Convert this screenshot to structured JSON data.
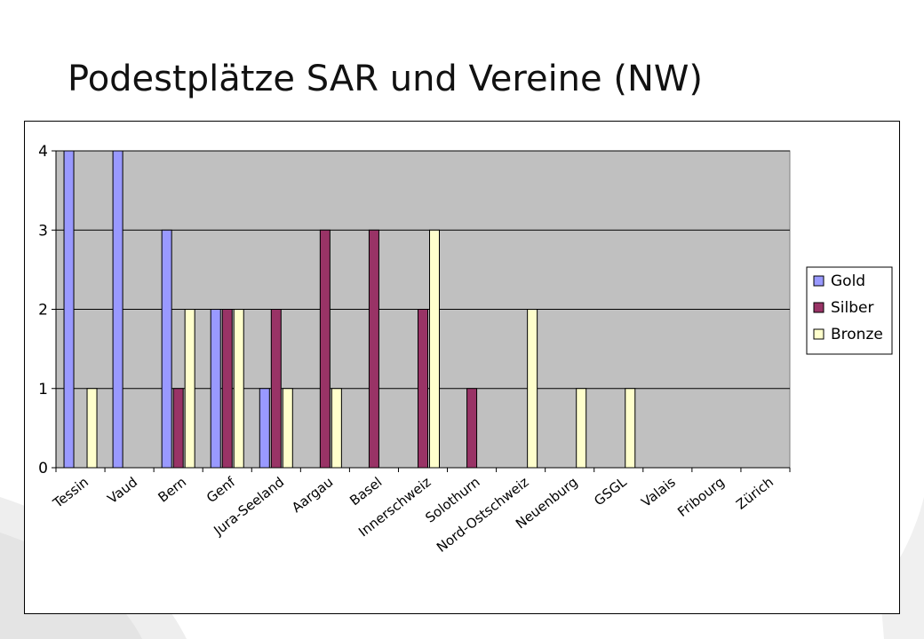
{
  "page": {
    "title": "Podestplätze SAR und Vereine (NW)"
  },
  "colors": {
    "plot_background": "#c0c0c0",
    "gold": "#9999ff",
    "silber": "#993366",
    "bronze": "#ffffcc",
    "frame": "#000000"
  },
  "chart_data": {
    "type": "bar",
    "title": "",
    "xlabel": "",
    "ylabel": "",
    "categories": [
      "Tessin",
      "Vaud",
      "Bern",
      "Genf",
      "Jura-Seeland",
      "Aargau",
      "Basel",
      "Innerschweiz",
      "Solothurn",
      "Nord-Ostschweiz",
      "Neuenburg",
      "GSGL",
      "Valais",
      "Fribourg",
      "Zürich"
    ],
    "series": [
      {
        "name": "Gold",
        "color": "#9999ff",
        "values": [
          4,
          4,
          3,
          2,
          1,
          0,
          0,
          0,
          0,
          0,
          0,
          0,
          0,
          0,
          0
        ]
      },
      {
        "name": "Silber",
        "color": "#993366",
        "values": [
          0,
          0,
          1,
          2,
          2,
          3,
          3,
          2,
          1,
          0,
          0,
          0,
          0,
          0,
          0
        ]
      },
      {
        "name": "Bronze",
        "color": "#ffffcc",
        "values": [
          1,
          0,
          2,
          2,
          1,
          1,
          0,
          3,
          0,
          2,
          1,
          1,
          0,
          0,
          0
        ]
      }
    ],
    "ylim": [
      0,
      4
    ],
    "yticks": [
      "0",
      "1",
      "2",
      "3",
      "4"
    ],
    "grid": true,
    "legend": "right"
  }
}
